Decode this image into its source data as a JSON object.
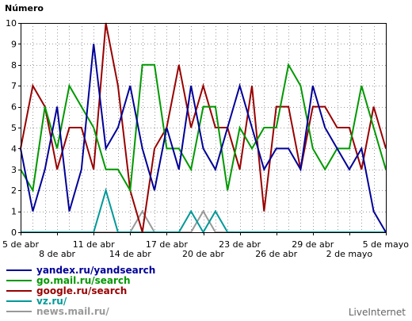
{
  "chart_data": {
    "type": "line",
    "ylabel": "Número",
    "ylim": [
      0,
      10
    ],
    "yticks": [
      0,
      1,
      2,
      3,
      4,
      5,
      6,
      7,
      8,
      9,
      10
    ],
    "grid": true,
    "legend_placement": "bottom-left",
    "x_dates": [
      "5 abr",
      "6 abr",
      "7 abr",
      "8 abr",
      "9 abr",
      "10 abr",
      "11 abr",
      "12 abr",
      "13 abr",
      "14 abr",
      "15 abr",
      "16 abr",
      "17 abr",
      "18 abr",
      "19 abr",
      "20 abr",
      "21 abr",
      "22 abr",
      "23 abr",
      "24 abr",
      "25 abr",
      "26 abr",
      "27 abr",
      "28 abr",
      "29 abr",
      "30 abr",
      "1 mayo",
      "2 mayo",
      "3 mayo",
      "4 mayo",
      "5 mayo"
    ],
    "x_tick_labels_row1": [
      {
        "i": 0,
        "label": "5 de abr"
      },
      {
        "i": 6,
        "label": "11 de abr"
      },
      {
        "i": 12,
        "label": "17 de abr"
      },
      {
        "i": 18,
        "label": "23 de abr"
      },
      {
        "i": 24,
        "label": "29 de abr"
      },
      {
        "i": 30,
        "label": "5 de mayo"
      }
    ],
    "x_tick_labels_row2": [
      {
        "i": 3,
        "label": "8 de abr"
      },
      {
        "i": 9,
        "label": "14 de abr"
      },
      {
        "i": 15,
        "label": "20 de abr"
      },
      {
        "i": 21,
        "label": "26 de abr"
      },
      {
        "i": 27,
        "label": "2 de mayo"
      }
    ],
    "series": [
      {
        "name": "yandex.ru/yandsearch",
        "color": "#000099",
        "values": [
          4,
          1,
          3,
          6,
          1,
          3,
          9,
          4,
          5,
          7,
          4,
          2,
          5,
          3,
          7,
          4,
          3,
          5,
          7,
          5,
          3,
          4,
          4,
          3,
          7,
          5,
          4,
          3,
          4,
          1,
          0
        ]
      },
      {
        "name": "go.mail.ru/search",
        "color": "#009900",
        "values": [
          3,
          2,
          6,
          4,
          7,
          6,
          5,
          3,
          3,
          2,
          8,
          8,
          4,
          4,
          3,
          6,
          6,
          2,
          5,
          4,
          5,
          5,
          8,
          7,
          4,
          3,
          4,
          4,
          7,
          5,
          3
        ]
      },
      {
        "name": "google.ru/search",
        "color": "#990000",
        "values": [
          4,
          7,
          6,
          3,
          5,
          5,
          3,
          10,
          7,
          2,
          0,
          4,
          5,
          8,
          5,
          7,
          5,
          5,
          3,
          7,
          1,
          6,
          6,
          3,
          6,
          6,
          5,
          5,
          3,
          6,
          4
        ]
      },
      {
        "name": "vz.ru/",
        "color": "#009999",
        "values": [
          0,
          0,
          0,
          0,
          0,
          0,
          0,
          2,
          0,
          0,
          0,
          0,
          0,
          0,
          1,
          0,
          1,
          0,
          0,
          0,
          0,
          0,
          0,
          0,
          0,
          0,
          0,
          0,
          0,
          0,
          0
        ]
      },
      {
        "name": "news.mail.ru/",
        "color": "#999999",
        "values": [
          0,
          0,
          0,
          0,
          0,
          0,
          0,
          0,
          0,
          0,
          1,
          0,
          0,
          0,
          0,
          1,
          0,
          0,
          0,
          0,
          0,
          0,
          0,
          0,
          0,
          0,
          0,
          0,
          0,
          0,
          0
        ]
      }
    ]
  },
  "credit": "LiveInternet"
}
